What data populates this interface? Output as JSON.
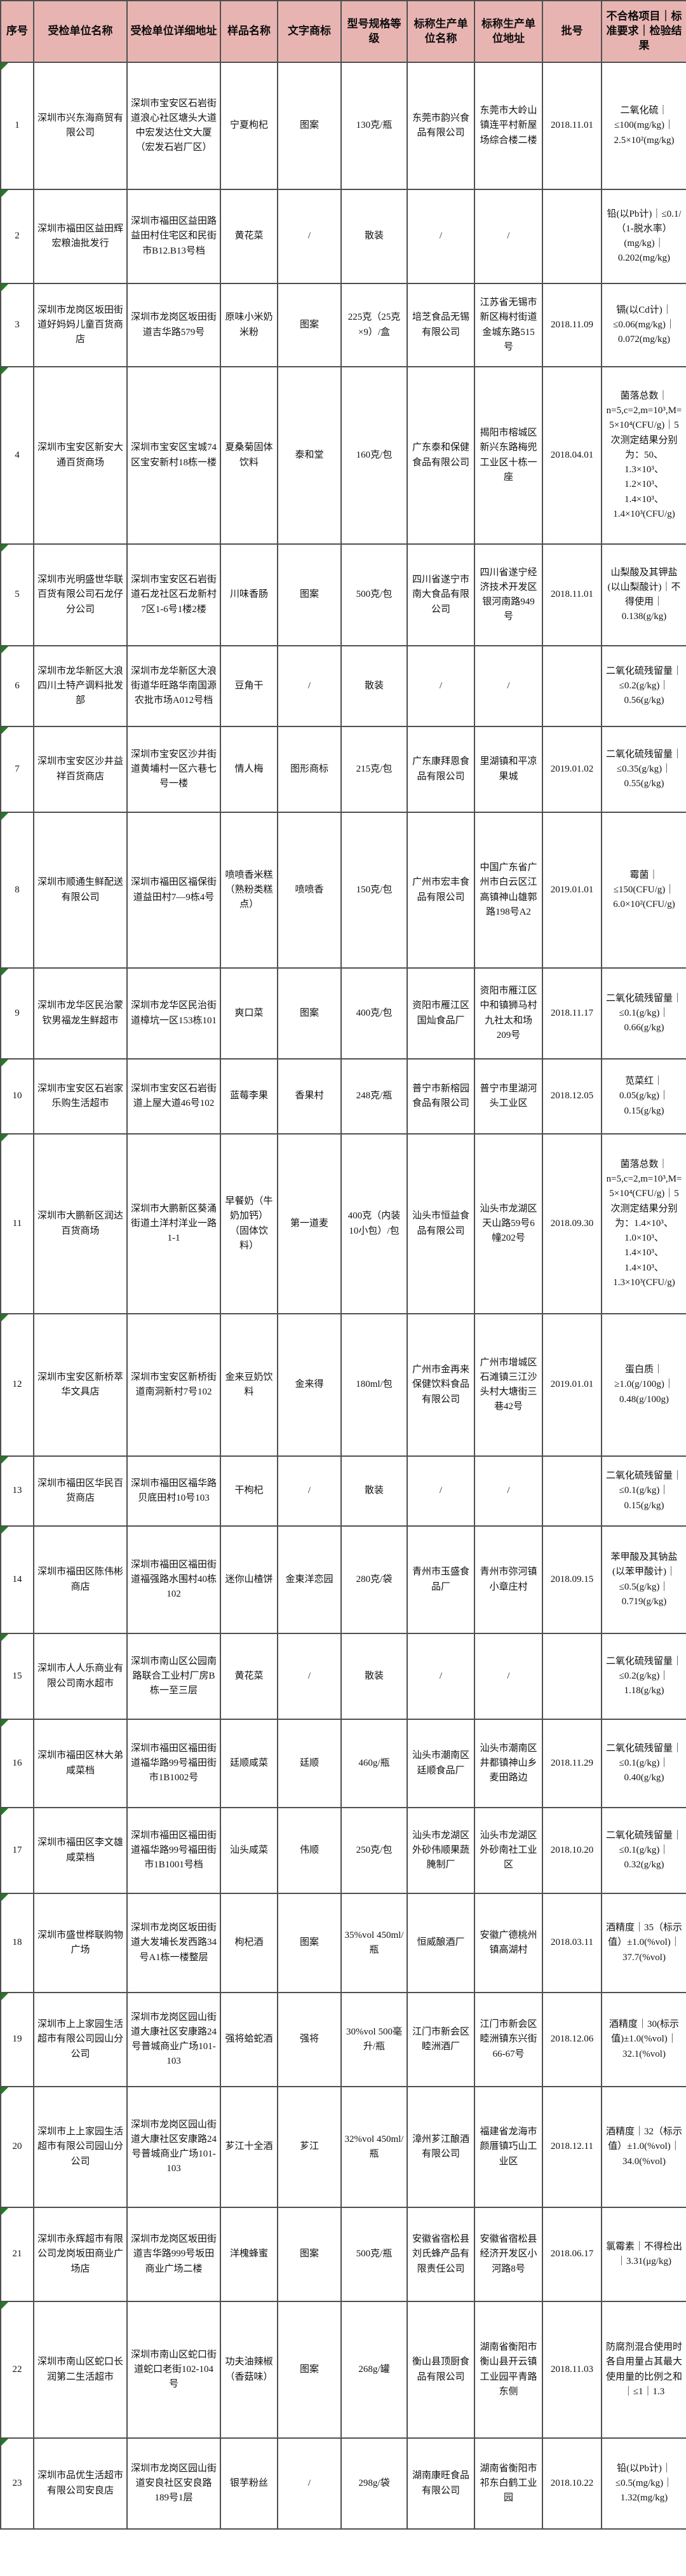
{
  "colors": {
    "header_bg": "#e8b4b2",
    "border": "#4f4f4f",
    "corner_marker_green": "#1e7e1e"
  },
  "table": {
    "columns": [
      {
        "key": "serial",
        "label": "序号"
      },
      {
        "key": "unit-name",
        "label": "受检单位名称"
      },
      {
        "key": "unit-address",
        "label": "受检单位详细地址"
      },
      {
        "key": "sample-name",
        "label": "样品名称"
      },
      {
        "key": "trademark",
        "label": "文字商标"
      },
      {
        "key": "spec",
        "label": "型号规格等级"
      },
      {
        "key": "producer-name",
        "label": "标称生产单位名称"
      },
      {
        "key": "producer-address",
        "label": "标称生产单位地址"
      },
      {
        "key": "batch",
        "label": "批号"
      },
      {
        "key": "result",
        "label": "不合格项目｜标准要求｜检验结果"
      }
    ],
    "rows": [
      [
        "1",
        "深圳市兴东海商贸有限公司",
        "深圳市宝安区石岩街道浪心社区塘头大道中宏发达仕文大厦（宏发石岩厂区）",
        "宁夏枸杞",
        "图案",
        "130克/瓶",
        "东莞市韵兴食品有限公司",
        "东莞市大岭山镇连平村新屋场综合楼二楼",
        "2018.11.01",
        "二氧化硫｜≤100(mg/kg)｜2.5×10²(mg/kg)"
      ],
      [
        "2",
        "深圳市福田区益田辉宏粮油批发行",
        "深圳市福田区益田路益田村住宅区和民街市B12.B13号档",
        "黄花菜",
        "/",
        "散装",
        "/",
        "/",
        "",
        "铅(以Pb计)｜≤0.1/（1-脱水率）(mg/kg)｜0.202(mg/kg)"
      ],
      [
        "3",
        "深圳市龙岗区坂田街道好妈妈儿童百货商店",
        "深圳市龙岗区坂田街道吉华路579号",
        "原味小米奶米粉",
        "图案",
        "225克（25克×9）/盒",
        "培芝食品无锡有限公司",
        "江苏省无锡市新区梅村街道金城东路515号",
        "2018.11.09",
        "镉(以Cd计)｜≤0.06(mg/kg)｜0.072(mg/kg)"
      ],
      [
        "4",
        "深圳市宝安区新安大通百货商场",
        "深圳市宝安区宝城74区宝安新村18栋一楼",
        "夏桑菊固体饮料",
        "泰和堂",
        "160克/包",
        "广东泰和保健食品有限公司",
        "揭阳市榕城区新兴东路梅兜工业区十栋一座",
        "2018.04.01",
        "菌落总数｜n=5,c=2,m=10³,M=5×10⁴(CFU/g)｜5次测定结果分别为：50、1.3×10³、1.2×10³、1.4×10³、1.4×10³(CFU/g)"
      ],
      [
        "5",
        "深圳市光明盛世华联百货有限公司石龙仔分公司",
        "深圳市宝安区石岩街道石龙社区石龙新村7区1-6号1楼2楼",
        "川味香肠",
        "图案",
        "500克/包",
        "四川省遂宁市南大食品有限公司",
        "四川省遂宁经济技术开发区银河南路949号",
        "2018.11.01",
        "山梨酸及其钾盐(以山梨酸计)｜不得使用｜0.138(g/kg)"
      ],
      [
        "6",
        "深圳市龙华新区大浪四川土特产调料批发部",
        "深圳市龙华新区大浪街道华旺路华南国源农批市场A012号档",
        "豆角干",
        "/",
        "散装",
        "/",
        "/",
        "",
        "二氧化硫残留量｜≤0.2(g/kg)｜0.56(g/kg)"
      ],
      [
        "7",
        "深圳市宝安区沙井益祥百货商店",
        "深圳市宝安区沙井街道黄埔村一区六巷七号一楼",
        "情人梅",
        "图形商标",
        "215克/包",
        "广东康拜恩食品有限公司",
        "里湖镇和平凉果城",
        "2019.01.02",
        "二氧化硫残留量｜≤0.35(g/kg)｜0.55(g/kg)"
      ],
      [
        "8",
        "深圳市顺通生鲜配送有限公司",
        "深圳市福田区福保街道益田村7—9栋4号",
        "喷喷香米糕（熟粉类糕点）",
        "喷喷香",
        "150克/包",
        "广州市宏丰食品有限公司",
        "中国广东省广州市白云区江高镇神山雄郭路198号A2",
        "2019.01.01",
        "霉菌｜≤150(CFU/g)｜6.0×10²(CFU/g)"
      ],
      [
        "9",
        "深圳市龙华区民治蒙钦男福龙生鲜超市",
        "深圳市龙华区民治街道樟坑一区153栋101",
        "爽口菜",
        "图案",
        "400克/包",
        "资阳市雁江区国灿食品厂",
        "资阳市雁江区中和镇狮马村九社太和场209号",
        "2018.11.17",
        "二氧化硫残留量｜≤0.1(g/kg)｜0.66(g/kg)"
      ],
      [
        "10",
        "深圳市宝安区石岩家乐购生活超市",
        "深圳市宝安区石岩街道上屋大道46号102",
        "蓝莓李果",
        "香果村",
        "248克/瓶",
        "普宁市新榕园食品有限公司",
        "普宁市里湖河头工业区",
        "2018.12.05",
        "苋菜红｜0.05(g/kg)｜0.15(g/kg)"
      ],
      [
        "11",
        "深圳市大鹏新区润达百货商场",
        "深圳市大鹏新区葵涌街道土洋村洋业一路1-1",
        "早餐奶（牛奶加钙）（固体饮料）",
        "第一道麦",
        "400克（内装10小包）/包",
        "汕头市恒益食品有限公司",
        "汕头市龙湖区天山路59号6幢202号",
        "2018.09.30",
        "菌落总数｜n=5,c=2,m=10³,M=5×10⁴(CFU/g)｜5次测定结果分别为：1.4×10³、1.0×10³、1.4×10³、1.4×10³、1.3×10³(CFU/g)"
      ],
      [
        "12",
        "深圳市宝安区新桥萃华文具店",
        "深圳市宝安区新桥街道南洞新村7号102",
        "金来豆奶饮料",
        "金来得",
        "180ml/包",
        "广州市金再来保健饮料食品有限公司",
        "广州市增城区石滩镇三江沙头村大塘街三巷42号",
        "2019.01.01",
        "蛋白质｜≥1.0(g/100g)｜0.48(g/100g)"
      ],
      [
        "13",
        "深圳市福田区华民百货商店",
        "深圳市福田区福华路贝底田村10号103",
        "干枸杞",
        "/",
        "散装",
        "/",
        "/",
        "",
        "二氧化硫残留量｜≤0.1(g/kg)｜0.15(g/kg)"
      ],
      [
        "14",
        "深圳市福田区陈伟彬商店",
        "深圳市福田区福田街道福强路水围村40栋102",
        "迷你山楂饼",
        "金東洋恋园",
        "280克/袋",
        "青州市玉盛食品厂",
        "青州市弥河镇小章庄村",
        "2018.09.15",
        "苯甲酸及其钠盐(以苯甲酸计)｜≤0.5(g/kg)｜0.719(g/kg)"
      ],
      [
        "15",
        "深圳市人人乐商业有限公司南水超市",
        "深圳市南山区公园南路联合工业村厂房B栋一至三层",
        "黄花菜",
        "/",
        "散装",
        "/",
        "/",
        "",
        "二氧化硫残留量｜≤0.2(g/kg)｜1.18(g/kg)"
      ],
      [
        "16",
        "深圳市福田区林大弟咸菜档",
        "深圳市福田区福田街道福华路99号福田街市1B1002号",
        "廷顺咸菜",
        "廷顺",
        "460g/瓶",
        "汕头市潮南区廷顺食品厂",
        "汕头市潮南区井都镇神山乡麦田路边",
        "2018.11.29",
        "二氧化硫残留量｜≤0.1(g/kg)｜0.40(g/kg)"
      ],
      [
        "17",
        "深圳市福田区李文雄咸菜档",
        "深圳市福田区福田街道福华路99号福田街市1B1001号档",
        "汕头咸菜",
        "伟顺",
        "250克/包",
        "汕头市龙湖区外砂伟顺果蔬腌制厂",
        "汕头市龙湖区外砂南社工业区",
        "2018.10.20",
        "二氧化硫残留量｜≤0.1(g/kg)｜0.32(g/kg)"
      ],
      [
        "18",
        "深圳市盛世桦联购物广场",
        "深圳市龙岗区坂田街道大发埔长发西路34号A1栋一楼整层",
        "枸杞酒",
        "图案",
        "35%vol 450ml/瓶",
        "恒威酿酒厂",
        "安徽广德桃州镇高湖村",
        "2018.03.11",
        "酒精度｜35（标示值）±1.0(%vol)｜37.7(%vol)"
      ],
      [
        "19",
        "深圳市上上家园生活超市有限公司园山分公司",
        "深圳市龙岗区园山街道大康社区安康路24号普城商业广场101-103",
        "强将蛤蛇酒",
        "强将",
        "30%vol 500毫升/瓶",
        "江门市新会区睦洲酒厂",
        "江门市新会区睦洲镇东兴街66-67号",
        "2018.12.06",
        "酒精度｜30(标示值)±1.0(%vol)｜32.1(%vol)"
      ],
      [
        "20",
        "深圳市上上家园生活超市有限公司园山分公司",
        "深圳市龙岗区园山街道大康社区安康路24号普城商业广场101-103",
        "芗江十全酒",
        "芗江",
        "32%vol 450ml/瓶",
        "漳州芗江酿酒有限公司",
        "福建省龙海市颜厝镇巧山工业区",
        "2018.12.11",
        "酒精度｜32（标示值）±1.0(%vol)｜34.0(%vol)"
      ],
      [
        "21",
        "深圳市永辉超市有限公司龙岗坂田商业广场店",
        "深圳市龙岗区坂田街道吉华路999号坂田商业广场二楼",
        "洋槐蜂蜜",
        "图案",
        "500克/瓶",
        "安徽省宿松县刘氏蜂产品有限责任公司",
        "安徽省宿松县经济开发区小河路8号",
        "2018.06.17",
        "氯霉素｜不得检出｜3.31(μg/kg)"
      ],
      [
        "22",
        "深圳市南山区蛇口长润第二生活超市",
        "深圳市南山区蛇口街道蛇口老街102-104号",
        "功夫油辣椒（香菇味）",
        "图案",
        "268g/罐",
        "衡山县顶厨食品有限公司",
        "湖南省衡阳市衡山县开云镇工业园平青路东侧",
        "2018.11.03",
        "防腐剂混合使用时各自用量占其最大使用量的比例之和｜≤1｜1.3"
      ],
      [
        "23",
        "深圳市品优生活超市有限公司安良店",
        "深圳市龙岗区园山街道安良社区安良路189号1层",
        "银芋粉丝",
        "/",
        "298g/袋",
        "湖南康旺食品有限公司",
        "湖南省衡阳市祁东白鹤工业园",
        "2018.10.22",
        "铅(以Pb计)｜≤0.5(mg/kg)｜1.32(mg/kg)"
      ]
    ]
  }
}
